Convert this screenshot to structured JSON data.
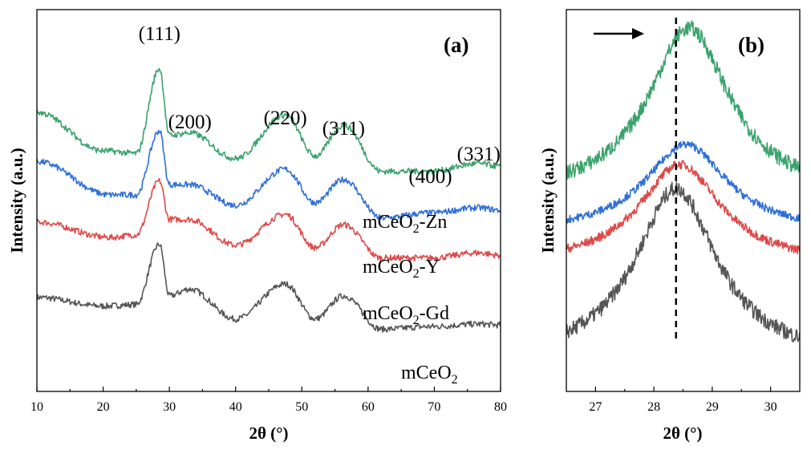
{
  "chart_data": [
    {
      "type": "line",
      "panel_label": "(a)",
      "xlabel": "2θ (°)",
      "ylabel": "Intensity (a.u.)",
      "xlim": [
        10,
        80
      ],
      "xticks": [
        10,
        20,
        30,
        40,
        50,
        60,
        70,
        80
      ],
      "y_ticks_shown": false,
      "peak_labels": [
        {
          "text": "(111)",
          "x": 28.5
        },
        {
          "text": "(200)",
          "x": 33.1
        },
        {
          "text": "(220)",
          "x": 47.5
        },
        {
          "text": "(311)",
          "x": 56.3
        },
        {
          "text": "(400)",
          "x": 69.4
        },
        {
          "text": "(331)",
          "x": 76.7
        }
      ],
      "series": [
        {
          "name": "mCeO2",
          "color": "#555555",
          "offset": 0,
          "points": [
            [
              10,
              1.02
            ],
            [
              20,
              0.85
            ],
            [
              25,
              0.88
            ],
            [
              28.5,
              2.05
            ],
            [
              30,
              1.05
            ],
            [
              33,
              1.18
            ],
            [
              40,
              0.6
            ],
            [
              47.5,
              1.28
            ],
            [
              52,
              0.6
            ],
            [
              56.3,
              1.05
            ],
            [
              62,
              0.4
            ],
            [
              69.4,
              0.45
            ],
            [
              76.7,
              0.5
            ],
            [
              80,
              0.48
            ]
          ]
        },
        {
          "name": "mCeO2-Gd",
          "color": "#e04848",
          "offset": 1,
          "points": [
            [
              10,
              1.3
            ],
            [
              21,
              1.0
            ],
            [
              25,
              1.05
            ],
            [
              28.5,
              2.1
            ],
            [
              30,
              1.35
            ],
            [
              33,
              1.35
            ],
            [
              40,
              0.85
            ],
            [
              47.5,
              1.45
            ],
            [
              52,
              0.8
            ],
            [
              56.3,
              1.25
            ],
            [
              62,
              0.6
            ],
            [
              69.4,
              0.6
            ],
            [
              76.7,
              0.7
            ],
            [
              80,
              0.65
            ]
          ]
        },
        {
          "name": "mCeO2-Y",
          "color": "#2f6fd6",
          "offset": 2,
          "points": [
            [
              10,
              1.65
            ],
            [
              21,
              1.0
            ],
            [
              25,
              1.0
            ],
            [
              28.5,
              2.25
            ],
            [
              30,
              1.2
            ],
            [
              33,
              1.2
            ],
            [
              40,
              0.8
            ],
            [
              47.5,
              1.5
            ],
            [
              52,
              0.85
            ],
            [
              56.3,
              1.3
            ],
            [
              62,
              0.55
            ],
            [
              69.4,
              0.65
            ],
            [
              76.7,
              0.75
            ],
            [
              80,
              0.7
            ]
          ]
        },
        {
          "name": "mCeO2-Zn",
          "color": "#3aa36b",
          "offset": 3,
          "points": [
            [
              10,
              1.75
            ],
            [
              20,
              1.0
            ],
            [
              25,
              0.95
            ],
            [
              28.5,
              2.6
            ],
            [
              30,
              1.3
            ],
            [
              33,
              1.35
            ],
            [
              40,
              0.85
            ],
            [
              47.5,
              1.7
            ],
            [
              52,
              0.9
            ],
            [
              56.3,
              1.5
            ],
            [
              62,
              0.6
            ],
            [
              69.4,
              0.6
            ],
            [
              76.7,
              0.75
            ],
            [
              80,
              0.7
            ]
          ]
        }
      ]
    },
    {
      "type": "line",
      "panel_label": "(b)",
      "xlabel": "2θ (°)",
      "ylabel": "Intensity (a.u.)",
      "xlim": [
        26.5,
        30.5
      ],
      "xticks": [
        27,
        28,
        29,
        30
      ],
      "y_ticks_shown": false,
      "reference_line_x": 28.38,
      "arrow": "right",
      "series": [
        {
          "name": "mCeO2",
          "color": "#555555",
          "peak_x": 28.38,
          "offset": 0
        },
        {
          "name": "mCeO2-Gd",
          "color": "#e04848",
          "peak_x": 28.45,
          "offset": 1
        },
        {
          "name": "mCeO2-Y",
          "color": "#2f6fd6",
          "peak_x": 28.55,
          "offset": 2
        },
        {
          "name": "mCeO2-Zn",
          "color": "#3aa36b",
          "peak_x": 28.6,
          "offset": 3
        }
      ]
    }
  ],
  "series_labels": [
    {
      "base": "mCeO",
      "sub": "2",
      "suffix": "-Zn"
    },
    {
      "base": "mCeO",
      "sub": "2",
      "suffix": "-Y"
    },
    {
      "base": "mCeO",
      "sub": "2",
      "suffix": "-Gd"
    },
    {
      "base": "mCeO",
      "sub": "2",
      "suffix": ""
    }
  ]
}
